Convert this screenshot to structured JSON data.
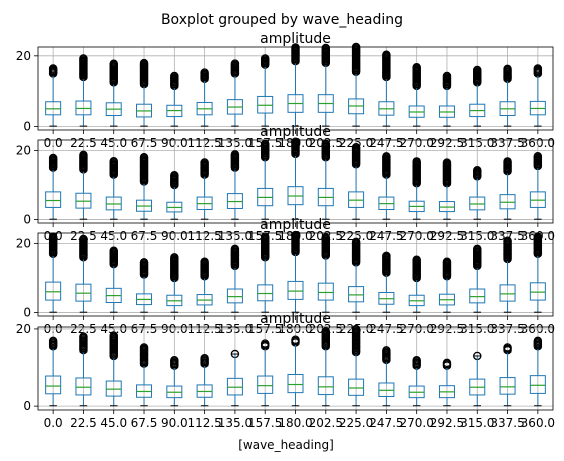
{
  "figure": {
    "suptitle": "Boxplot grouped by wave_heading",
    "xlabel": "[wave_heading]"
  },
  "colors": {
    "box": "#1f77b4",
    "median": "#2ca02c",
    "outlier": "#000000",
    "grid": "#b0b0b0"
  },
  "chart_data": [
    {
      "type": "box",
      "title": "amplitude",
      "xlabel": "[wave_heading]",
      "categories": [
        "0.0",
        "22.5",
        "45.0",
        "67.5",
        "90.0",
        "112.5",
        "135.0",
        "157.5",
        "180.0",
        "202.5",
        "225.0",
        "247.5",
        "270.0",
        "292.5",
        "315.0",
        "337.5",
        "360.0"
      ],
      "ylim": [
        -1,
        22.5
      ],
      "yticks": [
        0,
        20
      ],
      "grid": true,
      "boxes": [
        {
          "whislo": 0.1,
          "q1": 3.3,
          "med": 5.0,
          "q3": 7.0,
          "whishi": 14.5,
          "flierlo": 15.0,
          "fliershi": 16.7
        },
        {
          "whislo": 0.1,
          "q1": 3.3,
          "med": 5.1,
          "q3": 7.2,
          "whishi": 13.5,
          "flierlo": 14.0,
          "fliershi": 19.5
        },
        {
          "whislo": 0.1,
          "q1": 3.1,
          "med": 4.9,
          "q3": 6.7,
          "whishi": 12.0,
          "flierlo": 12.5,
          "fliershi": 18.0
        },
        {
          "whislo": 0.1,
          "q1": 2.7,
          "med": 4.4,
          "q3": 6.3,
          "whishi": 11.5,
          "flierlo": 12.0,
          "fliershi": 18.0
        },
        {
          "whislo": 0.1,
          "q1": 2.8,
          "med": 4.5,
          "q3": 6.0,
          "whishi": 11.0,
          "flierlo": 11.5,
          "fliershi": 14.5
        },
        {
          "whislo": 0.1,
          "q1": 3.3,
          "med": 5.0,
          "q3": 6.8,
          "whishi": 13.0,
          "flierlo": 13.5,
          "fliershi": 15.5
        },
        {
          "whislo": 0.1,
          "q1": 3.5,
          "med": 5.5,
          "q3": 7.6,
          "whishi": 14.5,
          "flierlo": 15.0,
          "fliershi": 18.0
        },
        {
          "whislo": 0.1,
          "q1": 3.8,
          "med": 6.0,
          "q3": 8.5,
          "whishi": 17.0,
          "flierlo": 17.5,
          "fliershi": 19.5
        },
        {
          "whislo": 0.1,
          "q1": 4.0,
          "med": 6.5,
          "q3": 9.0,
          "whishi": 18.0,
          "flierlo": 18.5,
          "fliershi": 22.5
        },
        {
          "whislo": 0.1,
          "q1": 4.0,
          "med": 6.5,
          "q3": 9.0,
          "whishi": 17.5,
          "flierlo": 18.0,
          "fliershi": 22.5
        },
        {
          "whislo": 0.1,
          "q1": 3.6,
          "med": 5.8,
          "q3": 7.8,
          "whishi": 15.0,
          "flierlo": 15.5,
          "fliershi": 22.5
        },
        {
          "whislo": 0.1,
          "q1": 3.2,
          "med": 5.0,
          "q3": 7.0,
          "whishi": 13.5,
          "flierlo": 14.0,
          "fliershi": 20.5
        },
        {
          "whislo": 0.1,
          "q1": 2.6,
          "med": 4.1,
          "q3": 5.8,
          "whishi": 11.0,
          "flierlo": 11.5,
          "fliershi": 17.0
        },
        {
          "whislo": 0.1,
          "q1": 2.6,
          "med": 4.1,
          "q3": 5.8,
          "whishi": 11.0,
          "flierlo": 11.5,
          "fliershi": 14.5
        },
        {
          "whislo": 0.1,
          "q1": 2.8,
          "med": 4.5,
          "q3": 6.3,
          "whishi": 12.0,
          "flierlo": 12.5,
          "fliershi": 16.0
        },
        {
          "whislo": 0.1,
          "q1": 3.1,
          "med": 5.0,
          "q3": 7.0,
          "whishi": 13.0,
          "flierlo": 13.5,
          "fliershi": 16.5
        },
        {
          "whislo": 0.1,
          "q1": 3.3,
          "med": 5.1,
          "q3": 7.1,
          "whishi": 14.5,
          "flierlo": 15.0,
          "fliershi": 16.5
        }
      ]
    },
    {
      "type": "box",
      "title": "amplitude",
      "xlabel": "[wave_heading]",
      "categories": [
        "0.0",
        "22.5",
        "45.0",
        "67.5",
        "90.0",
        "112.5",
        "135.0",
        "157.5",
        "180.0",
        "202.5",
        "225.0",
        "247.5",
        "270.0",
        "292.5",
        "315.0",
        "337.5",
        "360.0"
      ],
      "ylim": [
        -1,
        23
      ],
      "yticks": [
        0,
        20
      ],
      "grid": true,
      "boxes": [
        {
          "whislo": 0.1,
          "q1": 3.5,
          "med": 5.5,
          "q3": 8.0,
          "whishi": 14.5,
          "flierlo": 15.0,
          "fliershi": 18.0
        },
        {
          "whislo": 0.1,
          "q1": 3.3,
          "med": 5.3,
          "q3": 7.6,
          "whishi": 14.0,
          "flierlo": 14.5,
          "fliershi": 19.0
        },
        {
          "whislo": 0.1,
          "q1": 2.8,
          "med": 4.5,
          "q3": 6.5,
          "whishi": 12.5,
          "flierlo": 13.0,
          "fliershi": 17.0
        },
        {
          "whislo": 0.1,
          "q1": 2.4,
          "med": 3.9,
          "q3": 5.6,
          "whishi": 10.5,
          "flierlo": 11.0,
          "fliershi": 18.0
        },
        {
          "whislo": 0.1,
          "q1": 2.2,
          "med": 3.5,
          "q3": 5.0,
          "whishi": 9.5,
          "flierlo": 10.0,
          "fliershi": 13.0
        },
        {
          "whislo": 0.1,
          "q1": 2.9,
          "med": 4.6,
          "q3": 6.5,
          "whishi": 12.5,
          "flierlo": 13.0,
          "fliershi": 16.5
        },
        {
          "whislo": 0.1,
          "q1": 3.2,
          "med": 5.2,
          "q3": 7.5,
          "whishi": 14.5,
          "flierlo": 15.0,
          "fliershi": 19.0
        },
        {
          "whislo": 0.1,
          "q1": 4.0,
          "med": 6.4,
          "q3": 9.0,
          "whishi": 17.5,
          "flierlo": 18.0,
          "fliershi": 22.0
        },
        {
          "whislo": 0.1,
          "q1": 4.3,
          "med": 6.8,
          "q3": 9.5,
          "whishi": 18.5,
          "flierlo": 19.0,
          "fliershi": 22.5
        },
        {
          "whislo": 0.1,
          "q1": 4.0,
          "med": 6.4,
          "q3": 9.0,
          "whishi": 17.5,
          "flierlo": 18.0,
          "fliershi": 22.0
        },
        {
          "whislo": 0.1,
          "q1": 3.5,
          "med": 5.6,
          "q3": 8.0,
          "whishi": 15.5,
          "flierlo": 16.0,
          "fliershi": 21.0
        },
        {
          "whislo": 0.1,
          "q1": 2.9,
          "med": 4.6,
          "q3": 6.5,
          "whishi": 12.5,
          "flierlo": 13.0,
          "fliershi": 18.5
        },
        {
          "whislo": 0.1,
          "q1": 2.3,
          "med": 3.8,
          "q3": 5.3,
          "whishi": 10.0,
          "flierlo": 10.5,
          "fliershi": 17.0
        },
        {
          "whislo": 0.1,
          "q1": 2.3,
          "med": 3.6,
          "q3": 5.2,
          "whishi": 10.0,
          "flierlo": 10.5,
          "fliershi": 16.5
        },
        {
          "whislo": 0.1,
          "q1": 2.8,
          "med": 4.5,
          "q3": 6.5,
          "whishi": 12.0,
          "flierlo": 12.5,
          "fliershi": 14.5
        },
        {
          "whislo": 0.1,
          "q1": 3.1,
          "med": 5.0,
          "q3": 7.2,
          "whishi": 13.5,
          "flierlo": 14.0,
          "fliershi": 17.0
        },
        {
          "whislo": 0.1,
          "q1": 3.5,
          "med": 5.6,
          "q3": 8.0,
          "whishi": 15.0,
          "flierlo": 15.5,
          "fliershi": 18.5
        }
      ]
    },
    {
      "type": "box",
      "title": "amplitude",
      "xlabel": "[wave_heading]",
      "categories": [
        "0.0",
        "22.5",
        "45.0",
        "67.5",
        "90.0",
        "112.5",
        "135.0",
        "157.5",
        "180.0",
        "202.5",
        "225.0",
        "247.5",
        "270.0",
        "292.5",
        "315.0",
        "337.5",
        "360.0"
      ],
      "ylim": [
        -1,
        23
      ],
      "yticks": [
        0,
        20
      ],
      "grid": true,
      "boxes": [
        {
          "whislo": 0.1,
          "q1": 3.6,
          "med": 6.0,
          "q3": 8.8,
          "whishi": 16.5,
          "flierlo": 17.0,
          "fliershi": 22.0
        },
        {
          "whislo": 0.1,
          "q1": 3.3,
          "med": 5.6,
          "q3": 8.2,
          "whishi": 15.5,
          "flierlo": 16.0,
          "fliershi": 21.5
        },
        {
          "whislo": 0.1,
          "q1": 2.9,
          "med": 4.9,
          "q3": 7.0,
          "whishi": 13.5,
          "flierlo": 14.0,
          "fliershi": 18.0
        },
        {
          "whislo": 0.1,
          "q1": 2.3,
          "med": 3.8,
          "q3": 5.4,
          "whishi": 10.5,
          "flierlo": 11.0,
          "fliershi": 14.5
        },
        {
          "whislo": 0.1,
          "q1": 2.0,
          "med": 3.4,
          "q3": 5.0,
          "whishi": 9.5,
          "flierlo": 10.0,
          "fliershi": 16.0
        },
        {
          "whislo": 0.1,
          "q1": 2.2,
          "med": 3.6,
          "q3": 5.2,
          "whishi": 10.0,
          "flierlo": 10.5,
          "fliershi": 15.0
        },
        {
          "whislo": 0.1,
          "q1": 2.8,
          "med": 4.6,
          "q3": 6.8,
          "whishi": 13.0,
          "flierlo": 13.5,
          "fliershi": 18.5
        },
        {
          "whislo": 0.1,
          "q1": 3.4,
          "med": 5.5,
          "q3": 8.0,
          "whishi": 15.5,
          "flierlo": 16.0,
          "fliershi": 22.0
        },
        {
          "whislo": 0.1,
          "q1": 3.8,
          "med": 6.2,
          "q3": 9.0,
          "whishi": 17.0,
          "flierlo": 17.5,
          "fliershi": 22.5
        },
        {
          "whislo": 0.1,
          "q1": 3.6,
          "med": 5.8,
          "q3": 8.5,
          "whishi": 16.0,
          "flierlo": 16.5,
          "fliershi": 22.0
        },
        {
          "whislo": 0.1,
          "q1": 3.1,
          "med": 5.1,
          "q3": 7.5,
          "whishi": 14.0,
          "flierlo": 14.5,
          "fliershi": 20.5
        },
        {
          "whislo": 0.1,
          "q1": 2.4,
          "med": 4.0,
          "q3": 5.8,
          "whishi": 11.0,
          "flierlo": 11.5,
          "fliershi": 16.5
        },
        {
          "whislo": 0.1,
          "q1": 2.0,
          "med": 3.4,
          "q3": 5.0,
          "whishi": 9.5,
          "flierlo": 10.0,
          "fliershi": 15.5
        },
        {
          "whislo": 0.1,
          "q1": 2.2,
          "med": 3.7,
          "q3": 5.3,
          "whishi": 10.0,
          "flierlo": 10.5,
          "fliershi": 15.0
        },
        {
          "whislo": 0.1,
          "q1": 2.8,
          "med": 4.6,
          "q3": 6.8,
          "whishi": 13.0,
          "flierlo": 13.5,
          "fliershi": 18.5
        },
        {
          "whislo": 0.1,
          "q1": 3.3,
          "med": 5.4,
          "q3": 8.0,
          "whishi": 15.0,
          "flierlo": 15.5,
          "fliershi": 21.0
        },
        {
          "whislo": 0.1,
          "q1": 3.6,
          "med": 5.9,
          "q3": 8.6,
          "whishi": 16.5,
          "flierlo": 17.0,
          "fliershi": 22.0
        }
      ]
    },
    {
      "type": "box",
      "title": "amplitude",
      "xlabel": "[wave_heading]",
      "categories": [
        "0.0",
        "22.5",
        "45.0",
        "67.5",
        "90.0",
        "112.5",
        "135.0",
        "157.5",
        "180.0",
        "202.5",
        "225.0",
        "247.5",
        "270.0",
        "292.5",
        "315.0",
        "337.5",
        "360.0"
      ],
      "ylim": [
        -1,
        20.5
      ],
      "yticks": [
        0,
        20
      ],
      "grid": true,
      "boxes": [
        {
          "whislo": 0.1,
          "q1": 3.2,
          "med": 5.2,
          "q3": 7.8,
          "whishi": 15.0,
          "flierlo": 15.5,
          "fliershi": 17.0
        },
        {
          "whislo": 0.1,
          "q1": 2.9,
          "med": 4.9,
          "q3": 7.3,
          "whishi": 14.0,
          "flierlo": 14.5,
          "fliershi": 18.0
        },
        {
          "whislo": 0.1,
          "q1": 2.6,
          "med": 4.4,
          "q3": 6.5,
          "whishi": 12.5,
          "flierlo": 13.0,
          "fliershi": 18.5
        },
        {
          "whislo": 0.1,
          "q1": 2.3,
          "med": 3.8,
          "q3": 5.5,
          "whishi": 10.5,
          "flierlo": 11.0,
          "fliershi": 15.5
        },
        {
          "whislo": 0.1,
          "q1": 2.2,
          "med": 3.6,
          "q3": 5.2,
          "whishi": 10.0,
          "flierlo": 10.5,
          "fliershi": 12.0
        },
        {
          "whislo": 0.1,
          "q1": 2.3,
          "med": 3.8,
          "q3": 5.5,
          "whishi": 10.5,
          "flierlo": 11.0,
          "fliershi": 12.5
        },
        {
          "whislo": 0.1,
          "q1": 2.9,
          "med": 4.9,
          "q3": 7.2,
          "whishi": 13.5,
          "flierlo": 13.5,
          "fliershi": 13.5
        },
        {
          "whislo": 0.1,
          "q1": 3.3,
          "med": 5.3,
          "q3": 7.8,
          "whishi": 15.0,
          "flierlo": 15.5,
          "fliershi": 16.5
        },
        {
          "whislo": 0.1,
          "q1": 3.5,
          "med": 5.6,
          "q3": 8.2,
          "whishi": 16.0,
          "flierlo": 16.5,
          "fliershi": 17.5
        },
        {
          "whislo": 0.1,
          "q1": 3.0,
          "med": 5.0,
          "q3": 7.6,
          "whishi": 15.0,
          "flierlo": 15.5,
          "fliershi": 19.5
        },
        {
          "whislo": 0.1,
          "q1": 2.8,
          "med": 4.7,
          "q3": 7.0,
          "whishi": 13.5,
          "flierlo": 14.0,
          "fliershi": 20.0
        },
        {
          "whislo": 0.1,
          "q1": 2.5,
          "med": 4.1,
          "q3": 6.0,
          "whishi": 11.5,
          "flierlo": 12.0,
          "fliershi": 14.5
        },
        {
          "whislo": 0.1,
          "q1": 2.2,
          "med": 3.6,
          "q3": 5.2,
          "whishi": 10.0,
          "flierlo": 10.5,
          "fliershi": 12.0
        },
        {
          "whislo": 0.1,
          "q1": 2.2,
          "med": 3.7,
          "q3": 5.3,
          "whishi": 10.0,
          "flierlo": 10.5,
          "fliershi": 11.5
        },
        {
          "whislo": 0.1,
          "q1": 2.9,
          "med": 4.9,
          "q3": 7.0,
          "whishi": 13.0,
          "flierlo": 13.0,
          "fliershi": 13.0
        },
        {
          "whislo": 0.1,
          "q1": 3.1,
          "med": 5.0,
          "q3": 7.4,
          "whishi": 14.0,
          "flierlo": 14.5,
          "fliershi": 15.5
        },
        {
          "whislo": 0.1,
          "q1": 3.3,
          "med": 5.4,
          "q3": 7.9,
          "whishi": 15.0,
          "flierlo": 15.5,
          "fliershi": 17.0
        }
      ]
    }
  ]
}
